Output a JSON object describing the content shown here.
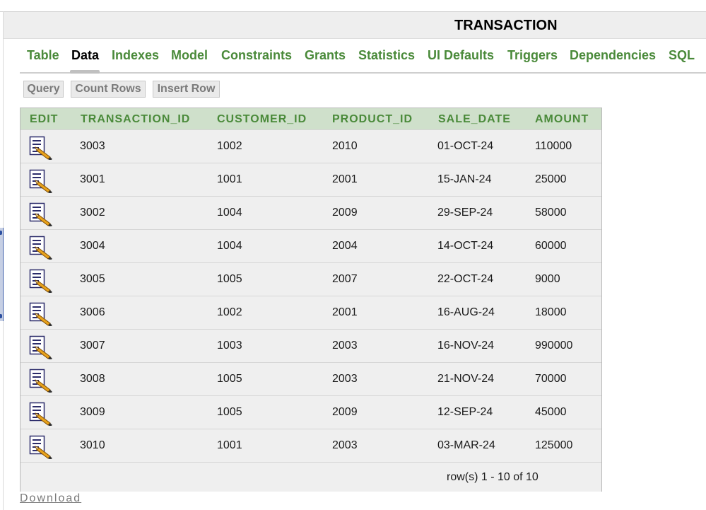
{
  "header": {
    "title": "TRANSACTION"
  },
  "tabs": [
    {
      "label": "Table",
      "active": false
    },
    {
      "label": "Data",
      "active": true
    },
    {
      "label": "Indexes",
      "active": false
    },
    {
      "label": "Model",
      "active": false
    },
    {
      "label": "Constraints",
      "active": false
    },
    {
      "label": "Grants",
      "active": false
    },
    {
      "label": "Statistics",
      "active": false
    },
    {
      "label": "UI Defaults",
      "active": false
    },
    {
      "label": "Triggers",
      "active": false
    },
    {
      "label": "Dependencies",
      "active": false
    },
    {
      "label": "SQL",
      "active": false
    }
  ],
  "toolbar": {
    "query": "Query",
    "count_rows": "Count Rows",
    "insert_row": "Insert Row"
  },
  "table": {
    "columns": [
      "EDIT",
      "TRANSACTION_ID",
      "CUSTOMER_ID",
      "PRODUCT_ID",
      "SALE_DATE",
      "AMOUNT"
    ],
    "rows": [
      [
        "3003",
        "1002",
        "2010",
        "01-OCT-24",
        "110000"
      ],
      [
        "3001",
        "1001",
        "2001",
        "15-JAN-24",
        "25000"
      ],
      [
        "3002",
        "1004",
        "2009",
        "29-SEP-24",
        "58000"
      ],
      [
        "3004",
        "1004",
        "2004",
        "14-OCT-24",
        "60000"
      ],
      [
        "3005",
        "1005",
        "2007",
        "22-OCT-24",
        "9000"
      ],
      [
        "3006",
        "1002",
        "2001",
        "16-AUG-24",
        "18000"
      ],
      [
        "3007",
        "1003",
        "2003",
        "16-NOV-24",
        "990000"
      ],
      [
        "3008",
        "1005",
        "2003",
        "21-NOV-24",
        "70000"
      ],
      [
        "3009",
        "1005",
        "2009",
        "12-SEP-24",
        "45000"
      ],
      [
        "3010",
        "1001",
        "2003",
        "03-MAR-24",
        "125000"
      ]
    ],
    "pagination": "row(s) 1 - 10 of 10"
  },
  "download_label": "Download",
  "colors": {
    "tab_green": "#4a8a3a",
    "header_bg": "#cfe0cb",
    "row_bg": "#efefef"
  },
  "icons": {
    "edit": "edit-record-icon"
  }
}
